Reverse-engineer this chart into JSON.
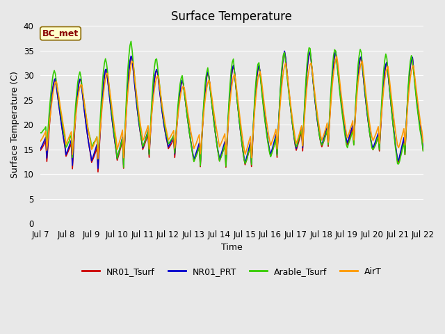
{
  "title": "Surface Temperature",
  "xlabel": "Time",
  "ylabel": "Surface Temperature (C)",
  "ylim": [
    0,
    40
  ],
  "yticks": [
    0,
    5,
    10,
    15,
    20,
    25,
    30,
    35,
    40
  ],
  "xtick_labels": [
    "Jul 7",
    "Jul 8",
    "Jul 9",
    "Jul 10",
    "Jul 11",
    "Jul 12",
    "Jul 13",
    "Jul 14",
    "Jul 15",
    "Jul 16",
    "Jul 17",
    "Jul 18",
    "Jul 19",
    "Jul 20",
    "Jul 21",
    "Jul 22"
  ],
  "line_colors": {
    "NR01_Tsurf": "#cc0000",
    "NR01_PRT": "#0000cc",
    "Arable_Tsurf": "#33cc00",
    "AirT": "#ff9900"
  },
  "line_width": 1.2,
  "annotation_text": "BC_met",
  "annotation_bg": "#ffffcc",
  "annotation_border": "#886600",
  "fig_bg": "#e8e8e8",
  "plot_bg": "#e8e8e8",
  "grid_color": "#ffffff",
  "title_fontsize": 12,
  "label_fontsize": 9,
  "tick_fontsize": 8.5
}
